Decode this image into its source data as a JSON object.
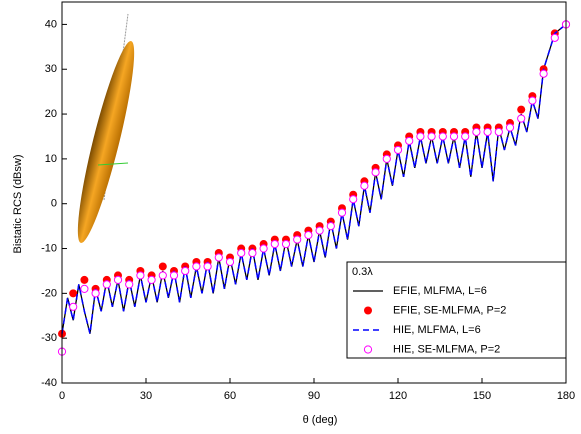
{
  "chart_data": {
    "type": "line",
    "xlabel": "θ (deg)",
    "ylabel": "Bistatic RCS (dBsw)",
    "xlim": [
      0,
      180
    ],
    "xticks": [
      0,
      30,
      60,
      90,
      120,
      150,
      180
    ],
    "ylim": [
      -40,
      45
    ],
    "yticks": [
      -40,
      -30,
      -20,
      -10,
      0,
      10,
      20,
      30,
      40
    ],
    "legend": "lower right",
    "legend_title": "0.3λ",
    "series": [
      {
        "name": "EFIE, MLFMA, L=6",
        "color": "#000000",
        "style": "solid",
        "x": [
          0,
          2,
          4,
          6,
          8,
          10,
          12,
          14,
          16,
          18,
          20,
          22,
          24,
          26,
          28,
          30,
          32,
          34,
          36,
          38,
          40,
          42,
          44,
          46,
          48,
          50,
          52,
          54,
          56,
          58,
          60,
          62,
          64,
          66,
          68,
          70,
          72,
          74,
          76,
          78,
          80,
          82,
          84,
          86,
          88,
          90,
          92,
          94,
          96,
          98,
          100,
          102,
          104,
          106,
          108,
          110,
          112,
          114,
          116,
          118,
          120,
          122,
          124,
          126,
          128,
          130,
          132,
          134,
          136,
          138,
          140,
          142,
          144,
          146,
          148,
          150,
          152,
          154,
          156,
          158,
          160,
          162,
          164,
          166,
          168,
          170,
          172,
          174,
          176,
          178,
          180
        ],
        "values": [
          -29,
          -21,
          -26,
          -18,
          -24,
          -29,
          -19,
          -24,
          -17,
          -23,
          -17,
          -24,
          -17,
          -23,
          -16,
          -22,
          -16,
          -22,
          -15,
          -21,
          -15,
          -22,
          -14,
          -21,
          -14,
          -20,
          -13,
          -20,
          -12,
          -19,
          -12,
          -18,
          -11,
          -17,
          -10,
          -17,
          -10,
          -16,
          -9,
          -15,
          -8,
          -14,
          -8,
          -14,
          -7,
          -13,
          -6,
          -12,
          -4,
          -10,
          -2,
          -8,
          1,
          -5,
          4,
          -2,
          7,
          1,
          10,
          4,
          12,
          6,
          14,
          8,
          15,
          9,
          15,
          9,
          15,
          9,
          15,
          8,
          15,
          6,
          16,
          8,
          16,
          5,
          17,
          12,
          17,
          13,
          20,
          16,
          23,
          19,
          30,
          34,
          38,
          39,
          40
        ]
      },
      {
        "name": "EFIE, SE-MLFMA, P=2",
        "color": "#ff0000",
        "style": "filled",
        "x": [
          0,
          4,
          8,
          12,
          16,
          20,
          24,
          28,
          32,
          36,
          40,
          44,
          48,
          52,
          56,
          60,
          64,
          68,
          72,
          76,
          80,
          84,
          88,
          92,
          96,
          100,
          104,
          108,
          112,
          116,
          120,
          124,
          128,
          132,
          136,
          140,
          144,
          148,
          152,
          156,
          160,
          164,
          168,
          172,
          176,
          180
        ],
        "values": [
          -29,
          -20,
          -17,
          -19,
          -17,
          -16,
          -17,
          -15,
          -16,
          -14,
          -15,
          -14,
          -13,
          -13,
          -11,
          -12,
          -10,
          -10,
          -9,
          -8,
          -8,
          -7,
          -6,
          -5,
          -4,
          -1,
          2,
          5,
          8,
          11,
          13,
          15,
          16,
          16,
          16,
          16,
          16,
          17,
          17,
          17,
          18,
          21,
          24,
          30,
          38,
          40
        ]
      },
      {
        "name": "HIE, MLFMA, L=6",
        "color": "#0000ff",
        "style": "dashed",
        "x": [
          0,
          2,
          4,
          6,
          8,
          10,
          12,
          14,
          16,
          18,
          20,
          22,
          24,
          26,
          28,
          30,
          32,
          34,
          36,
          38,
          40,
          42,
          44,
          46,
          48,
          50,
          52,
          54,
          56,
          58,
          60,
          62,
          64,
          66,
          68,
          70,
          72,
          74,
          76,
          78,
          80,
          82,
          84,
          86,
          88,
          90,
          92,
          94,
          96,
          98,
          100,
          102,
          104,
          106,
          108,
          110,
          112,
          114,
          116,
          118,
          120,
          122,
          124,
          126,
          128,
          130,
          132,
          134,
          136,
          138,
          140,
          142,
          144,
          146,
          148,
          150,
          152,
          154,
          156,
          158,
          160,
          162,
          164,
          166,
          168,
          170,
          172,
          174,
          176,
          178,
          180
        ],
        "values": [
          -29,
          -21,
          -26,
          -18,
          -24,
          -29,
          -19,
          -24,
          -17,
          -23,
          -17,
          -24,
          -17,
          -23,
          -16,
          -22,
          -16,
          -22,
          -15,
          -21,
          -15,
          -22,
          -14,
          -21,
          -14,
          -20,
          -13,
          -20,
          -12,
          -19,
          -12,
          -18,
          -11,
          -17,
          -10,
          -17,
          -10,
          -16,
          -9,
          -15,
          -8,
          -14,
          -8,
          -14,
          -7,
          -13,
          -6,
          -12,
          -4,
          -10,
          -2,
          -8,
          1,
          -5,
          4,
          -2,
          7,
          1,
          10,
          4,
          12,
          6,
          14,
          8,
          15,
          9,
          15,
          9,
          15,
          9,
          15,
          8,
          15,
          6,
          16,
          8,
          16,
          5,
          17,
          12,
          17,
          13,
          20,
          16,
          23,
          19,
          30,
          34,
          38,
          39,
          40
        ]
      },
      {
        "name": "HIE, SE-MLFMA, P=2",
        "color": "#ff00ff",
        "style": "open",
        "x": [
          0,
          4,
          8,
          12,
          16,
          20,
          24,
          28,
          32,
          36,
          40,
          44,
          48,
          52,
          56,
          60,
          64,
          68,
          72,
          76,
          80,
          84,
          88,
          92,
          96,
          100,
          104,
          108,
          112,
          116,
          120,
          124,
          128,
          132,
          136,
          140,
          144,
          148,
          152,
          156,
          160,
          164,
          168,
          172,
          176,
          180
        ],
        "values": [
          -33,
          -23,
          -19,
          -20,
          -18,
          -17,
          -18,
          -16,
          -17,
          -16,
          -16,
          -15,
          -14,
          -14,
          -12,
          -13,
          -11,
          -11,
          -10,
          -9,
          -9,
          -8,
          -7,
          -6,
          -5,
          -2,
          1,
          4,
          7,
          10,
          12,
          14,
          15,
          15,
          15,
          15,
          15,
          16,
          16,
          16,
          17,
          19,
          23,
          29,
          37,
          40
        ]
      }
    ]
  }
}
